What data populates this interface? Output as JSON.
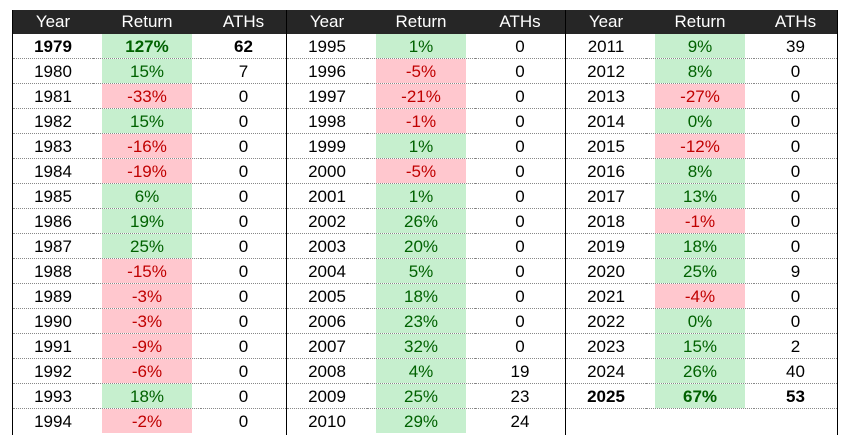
{
  "table": {
    "groups": [
      {
        "headers": [
          "Year",
          "Return",
          "ATHs"
        ],
        "bold_rows": [
          0
        ],
        "rows": [
          [
            "1979",
            "127%",
            "62"
          ],
          [
            "1980",
            "15%",
            "7"
          ],
          [
            "1981",
            "-33%",
            "0"
          ],
          [
            "1982",
            "15%",
            "0"
          ],
          [
            "1983",
            "-16%",
            "0"
          ],
          [
            "1984",
            "-19%",
            "0"
          ],
          [
            "1985",
            "6%",
            "0"
          ],
          [
            "1986",
            "19%",
            "0"
          ],
          [
            "1987",
            "25%",
            "0"
          ],
          [
            "1988",
            "-15%",
            "0"
          ],
          [
            "1989",
            "-3%",
            "0"
          ],
          [
            "1990",
            "-3%",
            "0"
          ],
          [
            "1991",
            "-9%",
            "0"
          ],
          [
            "1992",
            "-6%",
            "0"
          ],
          [
            "1993",
            "18%",
            "0"
          ],
          [
            "1994",
            "-2%",
            "0"
          ]
        ]
      },
      {
        "headers": [
          "Year",
          "Return",
          "ATHs"
        ],
        "bold_rows": [],
        "rows": [
          [
            "1995",
            "1%",
            "0"
          ],
          [
            "1996",
            "-5%",
            "0"
          ],
          [
            "1997",
            "-21%",
            "0"
          ],
          [
            "1998",
            "-1%",
            "0"
          ],
          [
            "1999",
            "1%",
            "0"
          ],
          [
            "2000",
            "-5%",
            "0"
          ],
          [
            "2001",
            "1%",
            "0"
          ],
          [
            "2002",
            "26%",
            "0"
          ],
          [
            "2003",
            "20%",
            "0"
          ],
          [
            "2004",
            "5%",
            "0"
          ],
          [
            "2005",
            "18%",
            "0"
          ],
          [
            "2006",
            "23%",
            "0"
          ],
          [
            "2007",
            "32%",
            "0"
          ],
          [
            "2008",
            "4%",
            "19"
          ],
          [
            "2009",
            "25%",
            "23"
          ],
          [
            "2010",
            "29%",
            "24"
          ]
        ]
      },
      {
        "headers": [
          "Year",
          "Return",
          "ATHs"
        ],
        "bold_rows": [
          14
        ],
        "rows": [
          [
            "2011",
            "9%",
            "39"
          ],
          [
            "2012",
            "8%",
            "0"
          ],
          [
            "2013",
            "-27%",
            "0"
          ],
          [
            "2014",
            "0%",
            "0"
          ],
          [
            "2015",
            "-12%",
            "0"
          ],
          [
            "2016",
            "8%",
            "0"
          ],
          [
            "2017",
            "13%",
            "0"
          ],
          [
            "2018",
            "-1%",
            "0"
          ],
          [
            "2019",
            "18%",
            "0"
          ],
          [
            "2020",
            "25%",
            "9"
          ],
          [
            "2021",
            "-4%",
            "0"
          ],
          [
            "2022",
            "0%",
            "0"
          ],
          [
            "2023",
            "15%",
            "2"
          ],
          [
            "2024",
            "26%",
            "40"
          ],
          [
            "2025",
            "67%",
            "53"
          ]
        ]
      }
    ]
  }
}
